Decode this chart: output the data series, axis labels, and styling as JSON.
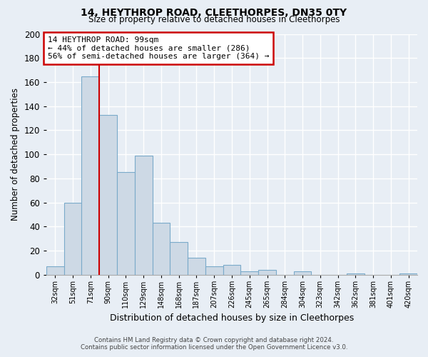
{
  "title": "14, HEYTHROP ROAD, CLEETHORPES, DN35 0TY",
  "subtitle": "Size of property relative to detached houses in Cleethorpes",
  "xlabel": "Distribution of detached houses by size in Cleethorpes",
  "ylabel": "Number of detached properties",
  "bar_color": "#cdd9e5",
  "bar_edge_color": "#7aaaca",
  "tick_labels": [
    "32sqm",
    "51sqm",
    "71sqm",
    "90sqm",
    "110sqm",
    "129sqm",
    "148sqm",
    "168sqm",
    "187sqm",
    "207sqm",
    "226sqm",
    "245sqm",
    "265sqm",
    "284sqm",
    "304sqm",
    "323sqm",
    "342sqm",
    "362sqm",
    "381sqm",
    "401sqm",
    "420sqm"
  ],
  "bar_heights": [
    7,
    60,
    165,
    133,
    85,
    99,
    43,
    27,
    14,
    7,
    8,
    3,
    4,
    0,
    3,
    0,
    0,
    1,
    0,
    0,
    1
  ],
  "ylim": [
    0,
    200
  ],
  "yticks": [
    0,
    20,
    40,
    60,
    80,
    100,
    120,
    140,
    160,
    180,
    200
  ],
  "vline_x": 3.0,
  "vline_color": "#cc0000",
  "annotation_title": "14 HEYTHROP ROAD: 99sqm",
  "annotation_line1": "← 44% of detached houses are smaller (286)",
  "annotation_line2": "56% of semi-detached houses are larger (364) →",
  "annotation_box_color": "#ffffff",
  "annotation_box_edge": "#cc0000",
  "footnote1": "Contains HM Land Registry data © Crown copyright and database right 2024.",
  "footnote2": "Contains public sector information licensed under the Open Government Licence v3.0.",
  "background_color": "#e8eef5",
  "plot_background": "#e8eef5",
  "grid_color": "#ffffff"
}
